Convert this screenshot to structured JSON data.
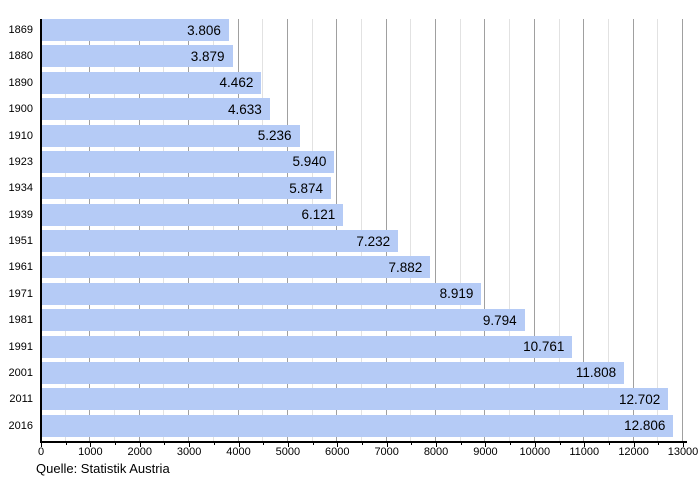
{
  "chart_data": {
    "type": "bar",
    "orientation": "horizontal",
    "title": "",
    "xlabel": "",
    "ylabel": "",
    "categories": [
      "1869",
      "1880",
      "1890",
      "1900",
      "1910",
      "1923",
      "1934",
      "1939",
      "1951",
      "1961",
      "1971",
      "1981",
      "1991",
      "2001",
      "2011",
      "2016"
    ],
    "values": [
      3806,
      3879,
      4462,
      4633,
      5236,
      5940,
      5874,
      6121,
      7232,
      7882,
      8919,
      9794,
      10761,
      11808,
      12702,
      12806
    ],
    "value_labels": [
      "3.806",
      "3.879",
      "4.462",
      "4.633",
      "5.236",
      "5.940",
      "5.874",
      "6.121",
      "7.232",
      "7.882",
      "8.919",
      "9.794",
      "10.761",
      "11.808",
      "12.702",
      "12.806"
    ],
    "xlim": [
      0,
      13000
    ],
    "x_major_step": 1000,
    "x_minor_step": 500,
    "x_tick_labels": [
      "0",
      "1000",
      "2000",
      "3000",
      "4000",
      "5000",
      "6000",
      "7000",
      "8000",
      "9000",
      "10000",
      "11000",
      "12000",
      "13000"
    ],
    "grid": true,
    "legend": false,
    "source": "Quelle: Statistik Austria",
    "colors": {
      "bar": "#b5cbf6",
      "grid_major": "#a0a0a0",
      "grid_minor": "#e2e2e2",
      "axis": "#000000",
      "text": "#000000"
    }
  }
}
